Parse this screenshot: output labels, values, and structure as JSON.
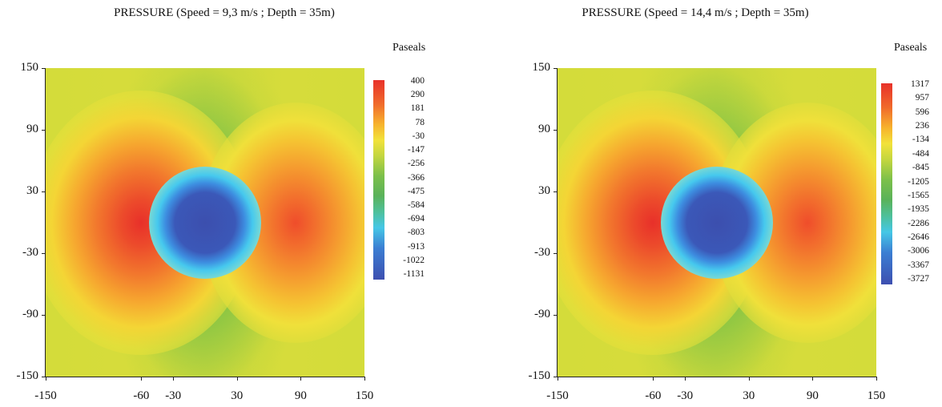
{
  "chart_data": [
    {
      "type": "heatmap",
      "title": "PRESSURE (Speed = 9,3 m/s ; Depth = 35m)",
      "colorbar_label": "Paseals",
      "colorbar_ticks": [
        "400",
        "290",
        "181",
        "78",
        "-30",
        "-147",
        "-256",
        "-366",
        "-475",
        "-584",
        "-694",
        "-803",
        "-913",
        "-1022",
        "-1131"
      ],
      "value_range": [
        -1131,
        400
      ],
      "xlim": [
        -150,
        150
      ],
      "ylim": [
        -150,
        150
      ],
      "x_ticks": [
        "-150",
        "-60",
        "-30",
        "30",
        "90",
        "150"
      ],
      "y_ticks": [
        "150",
        "90",
        "30",
        "-30",
        "-90",
        "-150"
      ],
      "features": [
        {
          "kind": "high",
          "x": -60,
          "y": 0,
          "value": 400
        },
        {
          "kind": "low",
          "x": 0,
          "y": 0,
          "value": -1131
        },
        {
          "kind": "high",
          "x": 85,
          "y": 0,
          "value": 250
        }
      ],
      "background_value": -30
    },
    {
      "type": "heatmap",
      "title": "PRESSURE (Speed = 14,4 m/s ; Depth = 35m)",
      "colorbar_label": "Paseals",
      "colorbar_ticks": [
        "1317",
        "957",
        "596",
        "236",
        "-134",
        "-484",
        "-845",
        "-1205",
        "-1565",
        "-1935",
        "-2286",
        "-2646",
        "-3006",
        "-3367",
        "-3727"
      ],
      "value_range": [
        -3727,
        1317
      ],
      "xlim": [
        -150,
        150
      ],
      "ylim": [
        -150,
        150
      ],
      "x_ticks": [
        "-150",
        "-60",
        "-30",
        "30",
        "90",
        "150"
      ],
      "y_ticks": [
        "150",
        "90",
        "30",
        "-30",
        "-90",
        "-150"
      ],
      "features": [
        {
          "kind": "high",
          "x": -60,
          "y": 0,
          "value": 1317
        },
        {
          "kind": "low",
          "x": 0,
          "y": 0,
          "value": -3727
        },
        {
          "kind": "high",
          "x": 85,
          "y": 0,
          "value": 900
        }
      ],
      "background_value": -134
    }
  ]
}
